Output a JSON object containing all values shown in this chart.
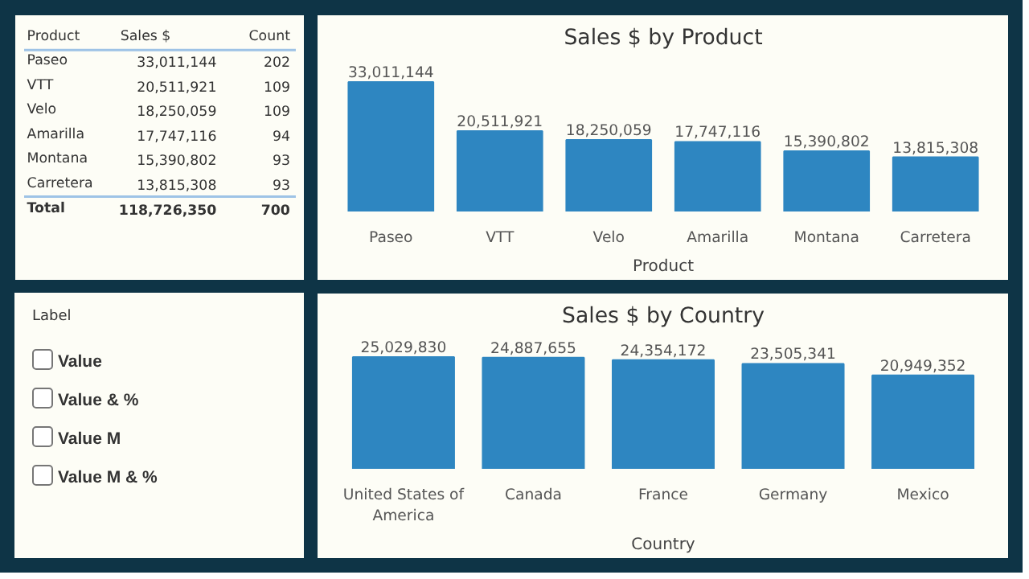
{
  "chart_data": [
    {
      "type": "other",
      "annotations": [
        "Product",
        "Sales $",
        "Count",
        "Paseo",
        "33,011,144",
        "202",
        "VTT",
        "20,511,921",
        "109",
        "Velo",
        "18,250,059",
        "109",
        "Amarilla",
        "17,747,116",
        "94",
        "Montana",
        "15,390,802",
        "93",
        "Carretera",
        "13,815,308",
        "93",
        "Total",
        "118,726,350",
        "700"
      ]
    },
    {
      "type": "other",
      "title": "Label",
      "categories": [
        "Value",
        "Value & %",
        "Value M",
        "Value M & %"
      ]
    },
    {
      "type": "bar",
      "title": "Sales $ by Product",
      "xlabel": "Product",
      "categories": [
        "Paseo",
        "VTT",
        "Velo",
        "Amarilla",
        "Montana",
        "Carretera"
      ],
      "values": [
        33011144,
        20511921,
        18250059,
        17747116,
        15390802,
        13815308
      ],
      "color": "#2e86c1",
      "value_labels": [
        "33,011,144",
        "20,511,921",
        "18,250,059",
        "17,747,116",
        "15,390,802",
        "13,815,308"
      ]
    },
    {
      "type": "bar",
      "title": "Sales $ by Country",
      "xlabel": "Country",
      "categories": [
        "United States of America",
        "Canada",
        "France",
        "Germany",
        "Mexico"
      ],
      "values": [
        25029830,
        24887655,
        24354172,
        23505341,
        20949352
      ],
      "color": "#2e86c1",
      "value_labels": [
        "25,029,830",
        "24,887,655",
        "24,354,172",
        "23,505,341",
        "20,949,352"
      ]
    }
  ]
}
